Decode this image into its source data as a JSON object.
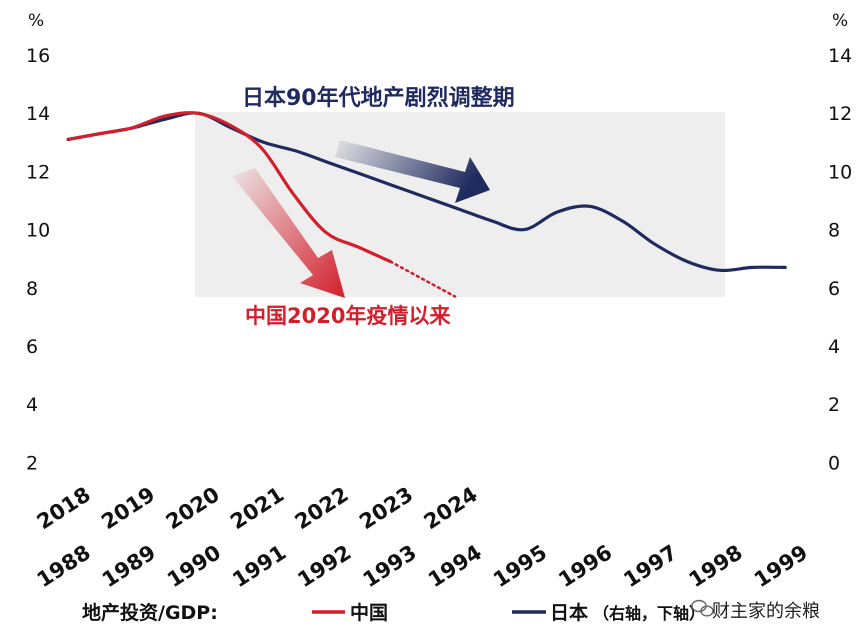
{
  "chart_data": {
    "type": "line",
    "left_axis": {
      "unit": "%",
      "ticks": [
        16,
        14,
        12,
        10,
        8,
        6,
        4,
        2
      ],
      "range": [
        2,
        16
      ]
    },
    "right_axis": {
      "unit": "%",
      "ticks": [
        14,
        12,
        10,
        8,
        6,
        4,
        2,
        0
      ],
      "range": [
        0,
        14
      ]
    },
    "x_top": {
      "categories": [
        "2018",
        "2019",
        "2020",
        "2021",
        "2022",
        "2023",
        "2024"
      ]
    },
    "x_bottom": {
      "categories": [
        "1988",
        "1989",
        "1990",
        "1991",
        "1992",
        "1993",
        "1994",
        "1995",
        "1996",
        "1997",
        "1998",
        "1999"
      ]
    },
    "series": [
      {
        "name": "中国",
        "axis": "left / top",
        "color": "#d21f2b",
        "x": [
          2018,
          2018.5,
          2019,
          2019.5,
          2020,
          2020.5,
          2021,
          2021.5,
          2022,
          2022.5,
          2023
        ],
        "values": [
          13.1,
          13.3,
          13.5,
          13.9,
          14.0,
          13.6,
          12.8,
          11.2,
          9.9,
          9.4,
          8.9
        ],
        "projection": {
          "x": [
            2023,
            2024
          ],
          "values": [
            8.9,
            7.7
          ],
          "style": "dotted"
        }
      },
      {
        "name": "日本",
        "axis": "right / bottom",
        "color": "#1f2a5e",
        "x": [
          1988,
          1988.5,
          1989,
          1989.5,
          1990,
          1990.5,
          1991,
          1991.5,
          1992,
          1992.5,
          1993,
          1993.5,
          1994,
          1994.5,
          1995,
          1995.5,
          1996,
          1996.5,
          1997,
          1997.5,
          1998,
          1998.5,
          1999
        ],
        "values": [
          11.1,
          11.3,
          11.5,
          11.8,
          12.0,
          11.5,
          11.0,
          10.7,
          10.3,
          9.9,
          9.5,
          9.1,
          8.7,
          8.3,
          8.0,
          8.6,
          8.8,
          8.3,
          7.5,
          6.9,
          6.6,
          6.7,
          6.7
        ]
      }
    ],
    "annotations": {
      "japan": "日本90年代地产剧烈调整期",
      "china": "中国2020年疫情以来"
    },
    "legend": {
      "label": "地产投资/GDP:",
      "china": "中国",
      "japan": "日本",
      "japan_note": "（右轴，下轴）"
    },
    "grid": false,
    "legend_placement": "bottom"
  },
  "watermark": "财主家的余粮",
  "colors": {
    "china": "#d21f2b",
    "japan": "#1f2a5e",
    "shade": "#ececec"
  }
}
